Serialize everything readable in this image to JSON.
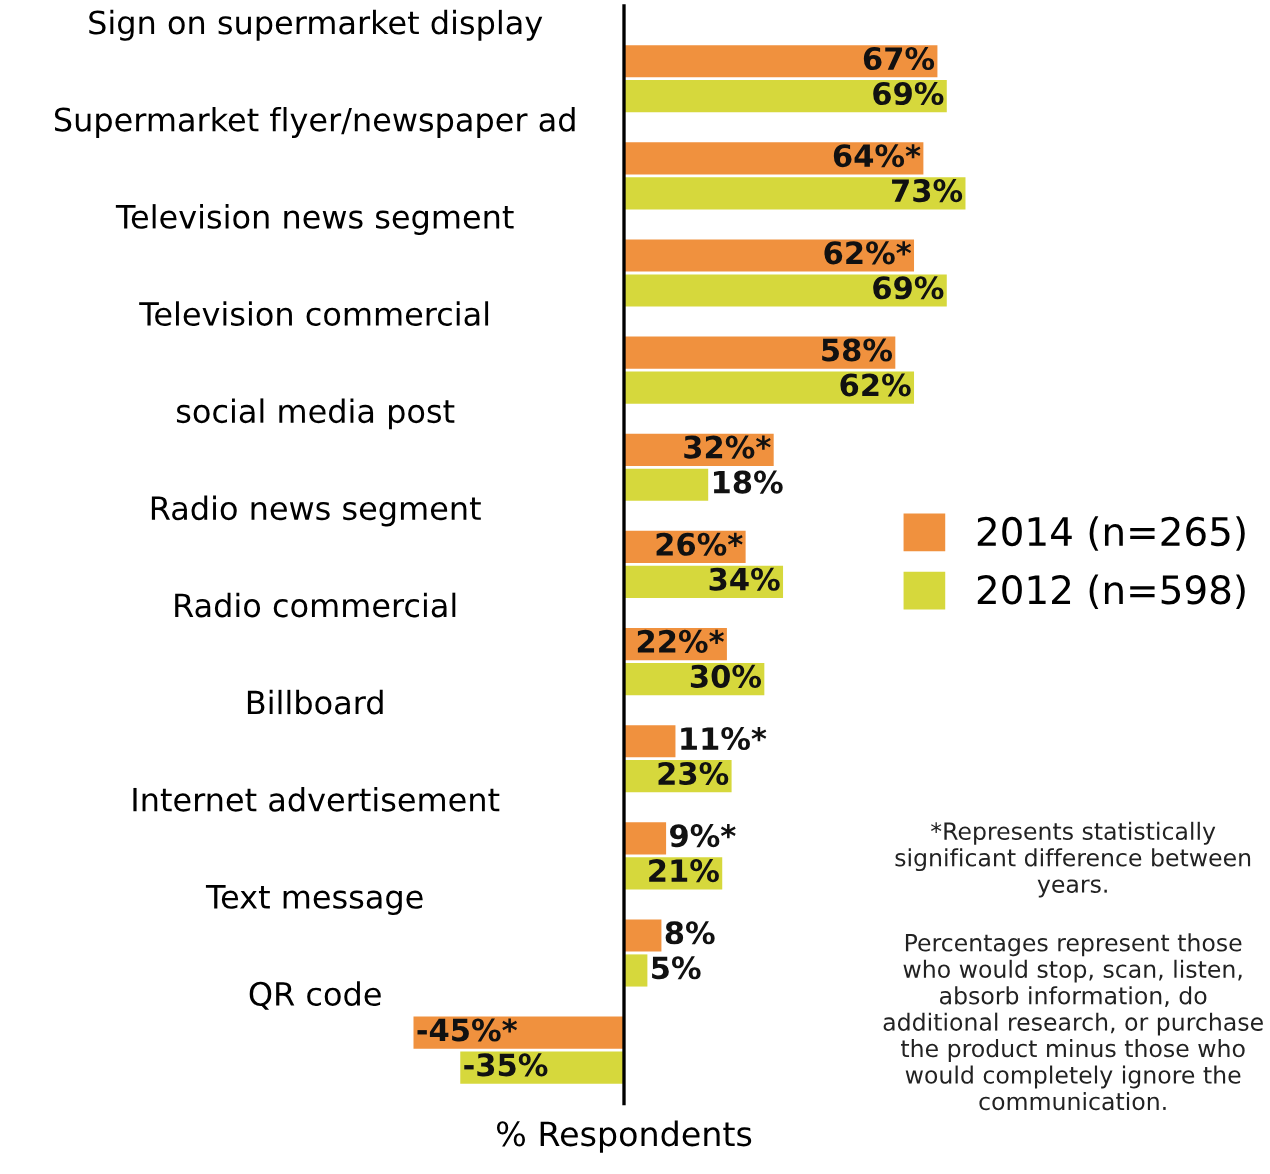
{
  "chart_data": {
    "type": "bar",
    "orientation": "horizontal",
    "xlabel": "% Respondents",
    "categories": [
      "Sign on supermarket display",
      "Supermarket flyer/newspaper ad",
      "Television news segment",
      "Television commercial",
      "social media post",
      "Radio news segment",
      "Radio commercial",
      "Billboard",
      "Internet advertisement",
      "Text message",
      "QR code"
    ],
    "series": [
      {
        "name": "2014 (n=265)",
        "color": "#f0913e",
        "values": [
          67,
          64,
          62,
          58,
          32,
          26,
          22,
          11,
          9,
          8,
          -45
        ],
        "value_labels": [
          "67%",
          "64%*",
          "62%*",
          "58%",
          "32%*",
          "26%*",
          "22%*",
          "11%*",
          "9%*",
          "8%",
          "-45%*"
        ]
      },
      {
        "name": "2012 (n=598)",
        "color": "#d6d83c",
        "values": [
          69,
          73,
          69,
          62,
          18,
          34,
          30,
          23,
          21,
          5,
          -35
        ],
        "value_labels": [
          "69%",
          "73%",
          "69%",
          "62%",
          "18%",
          "34%",
          "30%",
          "23%",
          "21%",
          "5%",
          "-35%"
        ]
      }
    ],
    "legend": "right",
    "annotations": [
      "*Represents statistically significant difference between years.",
      "Percentages represent those who would stop, scan, listen, absorb information, do additional research, or purchase the product minus those who would completely ignore the communication."
    ]
  }
}
